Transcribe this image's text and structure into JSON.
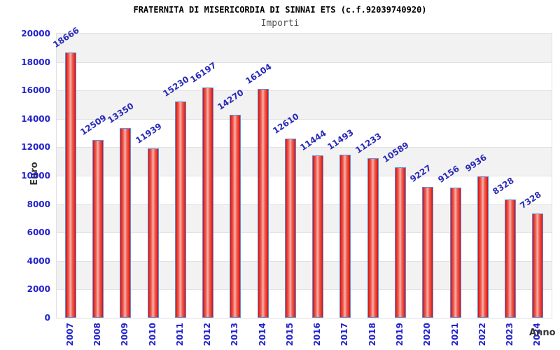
{
  "chart_data": {
    "type": "bar",
    "title": "FRATERNITA DI MISERICORDIA DI SINNAI ETS (c.f.92039740920)",
    "subtitle": "Importi",
    "xlabel": "Anno",
    "ylabel": "Euro",
    "categories": [
      "2007",
      "2008",
      "2009",
      "2010",
      "2011",
      "2012",
      "2013",
      "2014",
      "2015",
      "2016",
      "2017",
      "2018",
      "2019",
      "2020",
      "2021",
      "2022",
      "2023",
      "2024"
    ],
    "values": [
      18666,
      12509,
      13350,
      11939,
      15230,
      16197,
      14270,
      16104,
      12610,
      11444,
      11493,
      11233,
      10589,
      9227,
      9156,
      9936,
      8328,
      7328
    ],
    "ylim": [
      0,
      20000
    ],
    "ytick_step": 2000,
    "yticks": [
      0,
      2000,
      4000,
      6000,
      8000,
      10000,
      12000,
      14000,
      16000,
      18000,
      20000
    ],
    "grid": "horizontal alternating bands",
    "legend": "none"
  },
  "colors": {
    "bar_fill_dark": "#cf1010",
    "bar_fill_light": "#f7b3aa",
    "bar_border": "#5c8fdd",
    "value_label": "#2a2ab8",
    "tick_label": "#2222cc",
    "band_gray": "#f2f2f2",
    "band_white": "#ffffff",
    "gridline": "#e1e1e1",
    "title": "#000000",
    "subtitle": "#555555",
    "axis_title": "#333333"
  }
}
